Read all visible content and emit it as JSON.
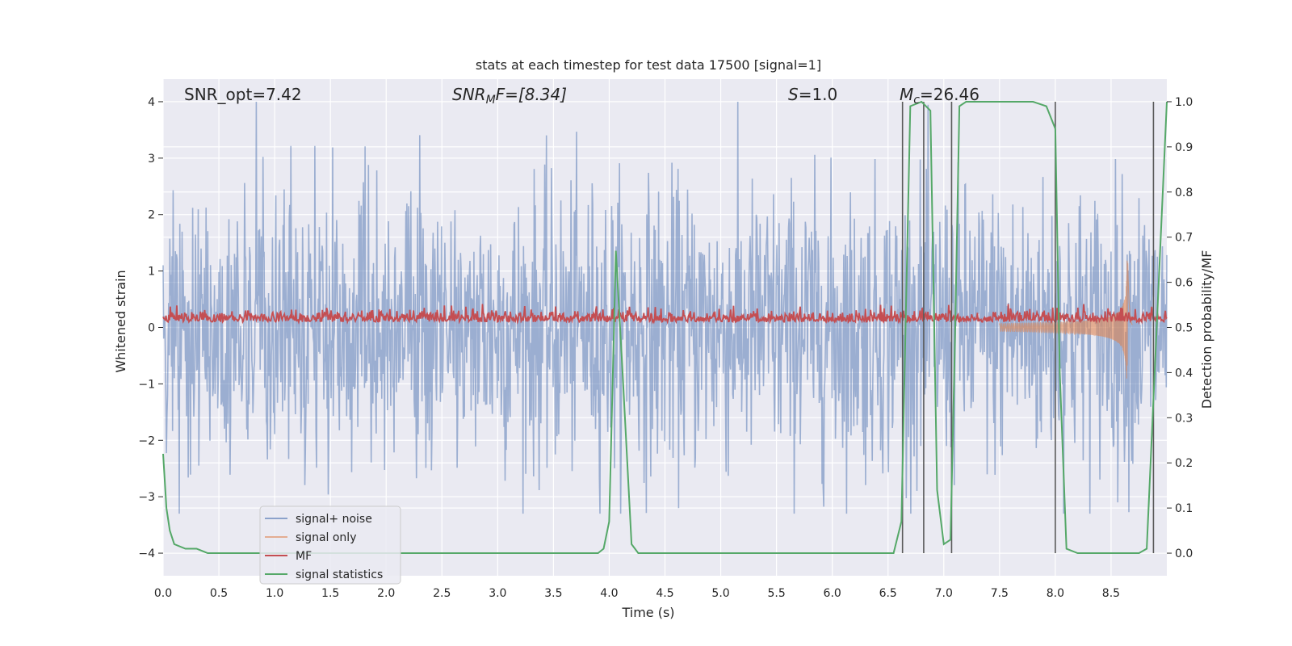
{
  "chart_data": {
    "type": "line",
    "title": "stats at each timestep for test data 17500 [signal=1]",
    "xlabel": "Time (s)",
    "ylabel": "Whitened strain",
    "y2label": "Detection probability/MF",
    "xlim": [
      0.0,
      9.0
    ],
    "ylim": [
      -4.4,
      4.4
    ],
    "y2lim": [
      -0.05,
      1.05
    ],
    "grid": true,
    "x_ticks": [
      "0.0",
      "0.5",
      "1.0",
      "1.5",
      "2.0",
      "2.5",
      "3.0",
      "3.5",
      "4.0",
      "4.5",
      "5.0",
      "5.5",
      "6.0",
      "6.5",
      "7.0",
      "7.5",
      "8.0",
      "8.5"
    ],
    "y_ticks": [
      "−4",
      "−3",
      "−2",
      "−1",
      "0",
      "1",
      "2",
      "3",
      "4"
    ],
    "y2_ticks": [
      "0.0",
      "0.1",
      "0.2",
      "0.3",
      "0.4",
      "0.5",
      "0.6",
      "0.7",
      "0.8",
      "0.9",
      "1.0"
    ],
    "annotations": {
      "snr_opt": "SNR_opt=7.42",
      "snr_mf_base": "SNR",
      "snr_mf_sub": "M",
      "snr_mf_tail": "F=[8.34]",
      "s_label": "S",
      "s_value": "=1.0",
      "mc_base": "M",
      "mc_sub": "c",
      "mc_value": "=26.46"
    },
    "legend": {
      "position": "lower-left",
      "entries": [
        {
          "label": "signal+ noise",
          "color": "#4c72b0"
        },
        {
          "label": "signal only",
          "color": "#dd8452"
        },
        {
          "label": "MF",
          "color": "#c44e52"
        },
        {
          "label": "signal statistics",
          "color": "#55a868"
        }
      ]
    },
    "series": [
      {
        "name": "signal+ noise",
        "axis": "left",
        "color": "#4c72b0",
        "style": "dense noise",
        "amplitude_range": [
          -3.3,
          4.0
        ]
      },
      {
        "name": "signal only",
        "axis": "left",
        "color": "#dd8452",
        "style": "chirp",
        "peak_time": 8.65,
        "peak_amplitude": 1.5
      },
      {
        "name": "MF",
        "axis": "right",
        "color": "#c44e52",
        "baseline": 0.5,
        "range": [
          0.5,
          0.58
        ]
      },
      {
        "name": "signal statistics",
        "axis": "right",
        "color": "#55a868",
        "x": [
          0.0,
          0.03,
          0.06,
          0.1,
          0.2,
          0.3,
          0.4,
          0.6,
          0.8,
          1.0,
          2.0,
          3.0,
          3.9,
          3.95,
          4.0,
          4.06,
          4.12,
          4.2,
          4.26,
          4.3,
          5.0,
          6.0,
          6.55,
          6.62,
          6.7,
          6.8,
          6.88,
          6.94,
          7.0,
          7.06,
          7.1,
          7.14,
          7.2,
          7.3,
          7.8,
          7.92,
          8.0,
          8.04,
          8.1,
          8.2,
          8.5,
          8.75,
          8.82,
          9.0
        ],
        "values": [
          0.22,
          0.1,
          0.05,
          0.02,
          0.01,
          0.01,
          0.0,
          0.0,
          0.0,
          0.0,
          0.0,
          0.0,
          0.0,
          0.01,
          0.07,
          0.67,
          0.4,
          0.02,
          0.0,
          0.0,
          0.0,
          0.0,
          0.0,
          0.07,
          0.99,
          1.0,
          0.98,
          0.14,
          0.02,
          0.03,
          0.47,
          0.99,
          1.0,
          1.0,
          1.0,
          0.99,
          0.94,
          0.4,
          0.01,
          0.0,
          0.0,
          0.0,
          0.01,
          1.0
        ]
      }
    ],
    "vertical_lines": [
      6.63,
      6.82,
      7.07,
      8.0,
      8.88
    ]
  }
}
